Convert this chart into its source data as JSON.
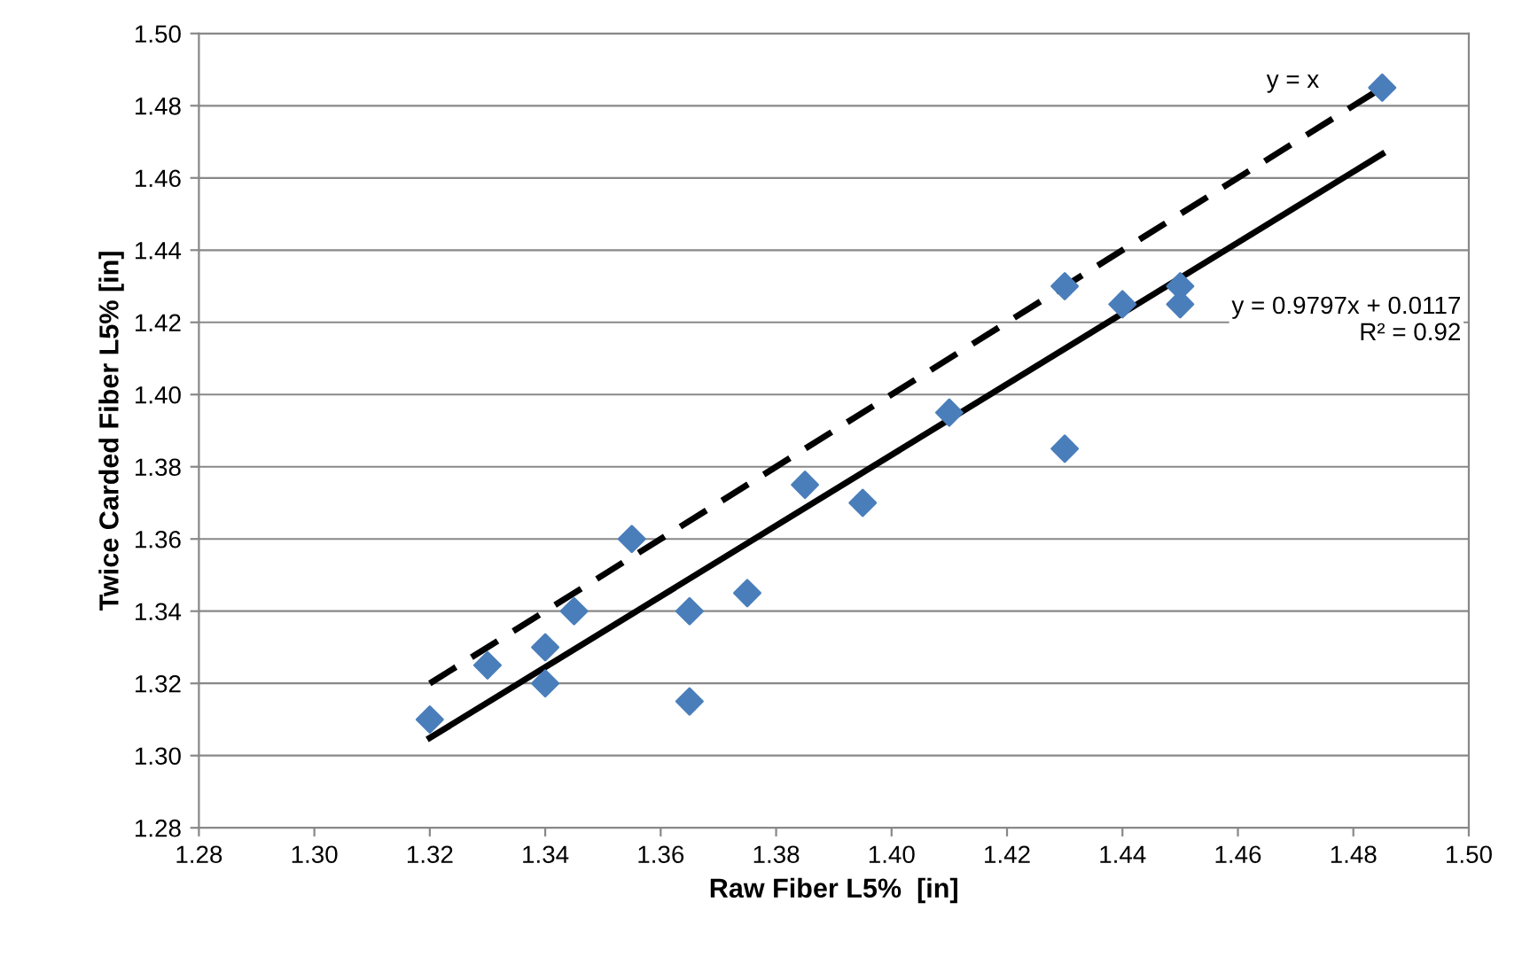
{
  "chart_data": {
    "type": "scatter",
    "xlabel": "Raw Fiber L5%  [in]",
    "ylabel": "Twice Carded Fiber L5% [in]",
    "series": [
      {
        "color": "#4a7ebb",
        "marker": "diamond",
        "x": [
          1.32,
          1.33,
          1.34,
          1.34,
          1.345,
          1.355,
          1.365,
          1.365,
          1.375,
          1.385,
          1.395,
          1.41,
          1.43,
          1.43,
          1.44,
          1.45,
          1.45,
          1.485
        ],
        "values": [
          1.31,
          1.325,
          1.33,
          1.32,
          1.34,
          1.36,
          1.34,
          1.315,
          1.345,
          1.375,
          1.37,
          1.395,
          1.43,
          1.385,
          1.425,
          1.43,
          1.425,
          1.485
        ]
      },
      {
        "type": "line",
        "color": "#000000",
        "line_style": "solid",
        "marker": "none",
        "x": [
          1.32,
          1.485
        ],
        "values": [
          1.3049,
          1.4666
        ]
      },
      {
        "type": "line",
        "color": "#000000",
        "line_style": "dashed",
        "marker": "none",
        "x": [
          1.32,
          1.485
        ],
        "values": [
          1.32,
          1.485
        ]
      }
    ],
    "annotations": [
      "y = x",
      "y = 0.9797x + 0.0117\nR² = 0.92"
    ],
    "xlim": [
      1.28,
      1.5
    ],
    "xticks": [
      {
        "value": 1.28,
        "label": "1.28"
      },
      {
        "value": 1.3,
        "label": "1.30"
      },
      {
        "value": 1.32,
        "label": "1.32"
      },
      {
        "value": 1.34,
        "label": "1.34"
      },
      {
        "value": 1.36,
        "label": "1.36"
      },
      {
        "value": 1.38,
        "label": "1.38"
      },
      {
        "value": 1.4,
        "label": "1.40"
      },
      {
        "value": 1.42,
        "label": "1.42"
      },
      {
        "value": 1.44,
        "label": "1.44"
      },
      {
        "value": 1.46,
        "label": "1.46"
      },
      {
        "value": 1.48,
        "label": "1.48"
      },
      {
        "value": 1.5,
        "label": "1.50"
      }
    ],
    "ylim": [
      1.28,
      1.5
    ],
    "yticks": [
      {
        "value": 1.28,
        "label": "1.28"
      },
      {
        "value": 1.3,
        "label": "1.30"
      },
      {
        "value": 1.32,
        "label": "1.32"
      },
      {
        "value": 1.34,
        "label": "1.34"
      },
      {
        "value": 1.36,
        "label": "1.36"
      },
      {
        "value": 1.38,
        "label": "1.38"
      },
      {
        "value": 1.4,
        "label": "1.40"
      },
      {
        "value": 1.42,
        "label": "1.42"
      },
      {
        "value": 1.44,
        "label": "1.44"
      },
      {
        "value": 1.46,
        "label": "1.46"
      },
      {
        "value": 1.48,
        "label": "1.48"
      },
      {
        "value": 1.5,
        "label": "1.50"
      }
    ],
    "grid": "y",
    "legend": false
  }
}
